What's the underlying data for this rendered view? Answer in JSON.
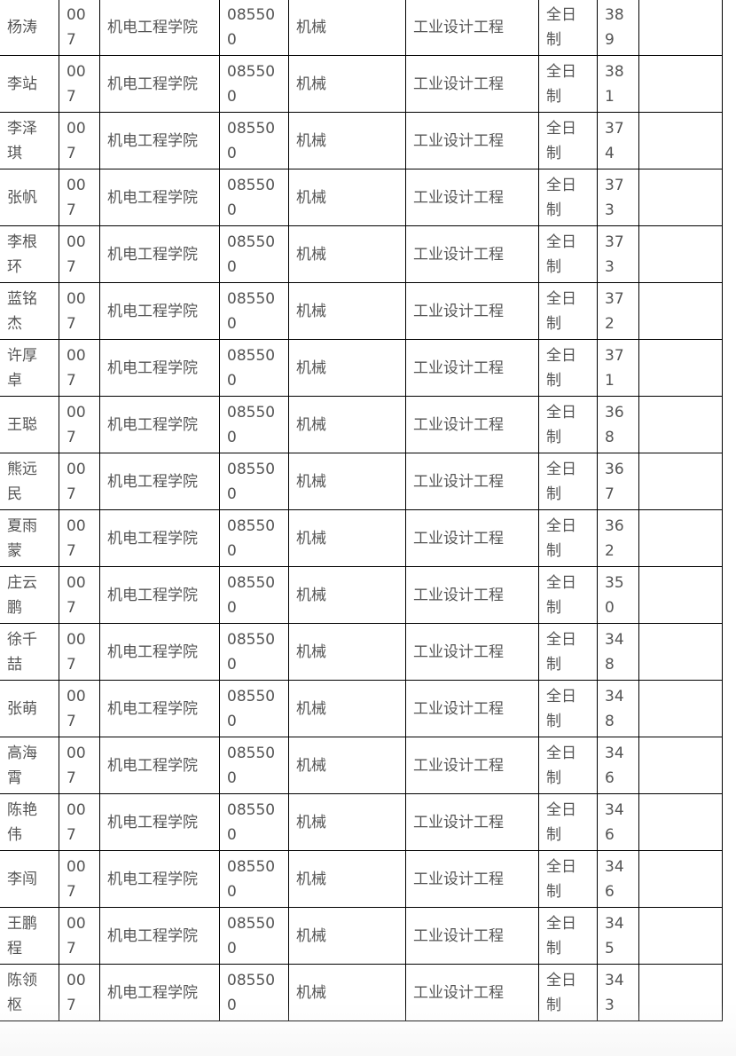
{
  "rows": [
    {
      "name": "杨涛",
      "code": "007",
      "college": "机电工程学院",
      "major_code": "085500",
      "major": "机械",
      "direction": "工业设计工程",
      "mode": "全日制",
      "score": "389",
      "note": ""
    },
    {
      "name": "李站",
      "code": "007",
      "college": "机电工程学院",
      "major_code": "085500",
      "major": "机械",
      "direction": "工业设计工程",
      "mode": "全日制",
      "score": "381",
      "note": ""
    },
    {
      "name": "李泽琪",
      "code": "007",
      "college": "机电工程学院",
      "major_code": "085500",
      "major": "机械",
      "direction": "工业设计工程",
      "mode": "全日制",
      "score": "374",
      "note": ""
    },
    {
      "name": "张帆",
      "code": "007",
      "college": "机电工程学院",
      "major_code": "085500",
      "major": "机械",
      "direction": "工业设计工程",
      "mode": "全日制",
      "score": "373",
      "note": ""
    },
    {
      "name": "李根环",
      "code": "007",
      "college": "机电工程学院",
      "major_code": "085500",
      "major": "机械",
      "direction": "工业设计工程",
      "mode": "全日制",
      "score": "373",
      "note": ""
    },
    {
      "name": "蓝铭杰",
      "code": "007",
      "college": "机电工程学院",
      "major_code": "085500",
      "major": "机械",
      "direction": "工业设计工程",
      "mode": "全日制",
      "score": "372",
      "note": ""
    },
    {
      "name": "许厚卓",
      "code": "007",
      "college": "机电工程学院",
      "major_code": "085500",
      "major": "机械",
      "direction": "工业设计工程",
      "mode": "全日制",
      "score": "371",
      "note": ""
    },
    {
      "name": "王聪",
      "code": "007",
      "college": "机电工程学院",
      "major_code": "085500",
      "major": "机械",
      "direction": "工业设计工程",
      "mode": "全日制",
      "score": "368",
      "note": ""
    },
    {
      "name": "熊远民",
      "code": "007",
      "college": "机电工程学院",
      "major_code": "085500",
      "major": "机械",
      "direction": "工业设计工程",
      "mode": "全日制",
      "score": "367",
      "note": ""
    },
    {
      "name": "夏雨蒙",
      "code": "007",
      "college": "机电工程学院",
      "major_code": "085500",
      "major": "机械",
      "direction": "工业设计工程",
      "mode": "全日制",
      "score": "362",
      "note": ""
    },
    {
      "name": "庄云鹏",
      "code": "007",
      "college": "机电工程学院",
      "major_code": "085500",
      "major": "机械",
      "direction": "工业设计工程",
      "mode": "全日制",
      "score": "350",
      "note": ""
    },
    {
      "name": "徐千喆",
      "code": "007",
      "college": "机电工程学院",
      "major_code": "085500",
      "major": "机械",
      "direction": "工业设计工程",
      "mode": "全日制",
      "score": "348",
      "note": ""
    },
    {
      "name": "张萌",
      "code": "007",
      "college": "机电工程学院",
      "major_code": "085500",
      "major": "机械",
      "direction": "工业设计工程",
      "mode": "全日制",
      "score": "348",
      "note": ""
    },
    {
      "name": "高海霄",
      "code": "007",
      "college": "机电工程学院",
      "major_code": "085500",
      "major": "机械",
      "direction": "工业设计工程",
      "mode": "全日制",
      "score": "346",
      "note": ""
    },
    {
      "name": "陈艳伟",
      "code": "007",
      "college": "机电工程学院",
      "major_code": "085500",
      "major": "机械",
      "direction": "工业设计工程",
      "mode": "全日制",
      "score": "346",
      "note": ""
    },
    {
      "name": "李闯",
      "code": "007",
      "college": "机电工程学院",
      "major_code": "085500",
      "major": "机械",
      "direction": "工业设计工程",
      "mode": "全日制",
      "score": "346",
      "note": ""
    },
    {
      "name": "王鹏程",
      "code": "007",
      "college": "机电工程学院",
      "major_code": "085500",
      "major": "机械",
      "direction": "工业设计工程",
      "mode": "全日制",
      "score": "345",
      "note": ""
    },
    {
      "name": "陈领枢",
      "code": "007",
      "college": "机电工程学院",
      "major_code": "085500",
      "major": "机械",
      "direction": "工业设计工程",
      "mode": "全日制",
      "score": "343",
      "note": ""
    }
  ]
}
